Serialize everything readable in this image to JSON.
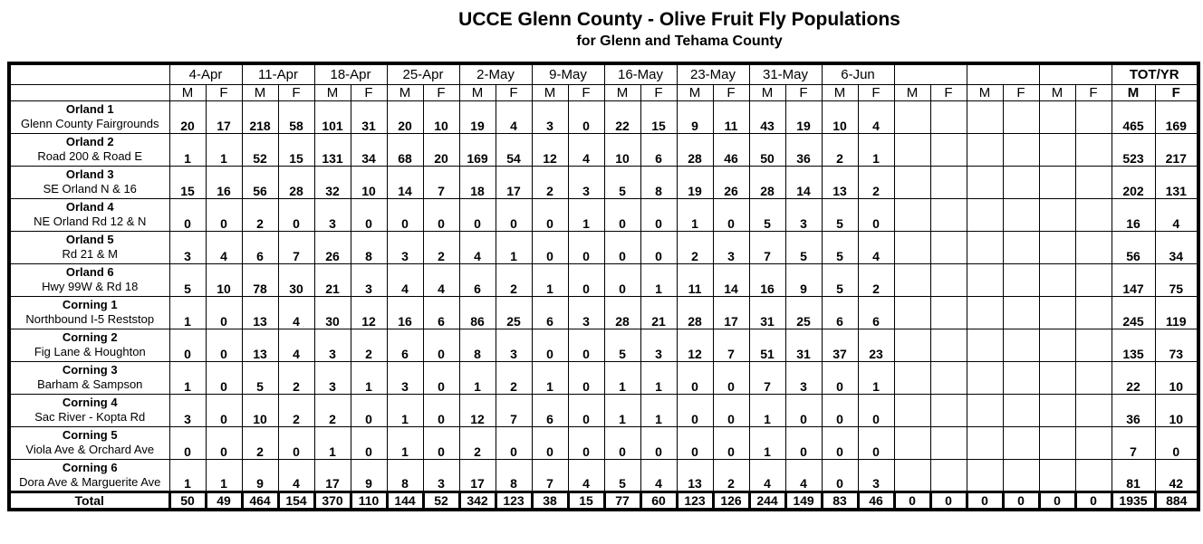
{
  "title": "UCCE Glenn County - Olive Fruit Fly Populations",
  "subtitle": "for Glenn and Tehama County",
  "table": {
    "male_label": "M",
    "female_label": "F",
    "total_col_label": "TOT/YR",
    "total_row_label": "Total",
    "date_groups": [
      "4-Apr",
      "11-Apr",
      "18-Apr",
      "25-Apr",
      "2-May",
      "9-May",
      "16-May",
      "23-May",
      "31-May",
      "6-Jun",
      "",
      "",
      ""
    ],
    "rows": [
      {
        "site": "Orland 1",
        "location": "Glenn County Fairgrounds",
        "values": [
          "20",
          "17",
          "218",
          "58",
          "101",
          "31",
          "20",
          "10",
          "19",
          "4",
          "3",
          "0",
          "22",
          "15",
          "9",
          "11",
          "43",
          "19",
          "10",
          "4",
          "",
          "",
          "",
          "",
          "",
          ""
        ],
        "tot": [
          "465",
          "169"
        ]
      },
      {
        "site": "Orland 2",
        "location": "Road 200 & Road E",
        "values": [
          "1",
          "1",
          "52",
          "15",
          "131",
          "34",
          "68",
          "20",
          "169",
          "54",
          "12",
          "4",
          "10",
          "6",
          "28",
          "46",
          "50",
          "36",
          "2",
          "1",
          "",
          "",
          "",
          "",
          "",
          ""
        ],
        "tot": [
          "523",
          "217"
        ]
      },
      {
        "site": "Orland 3",
        "location": "SE Orland N & 16",
        "values": [
          "15",
          "16",
          "56",
          "28",
          "32",
          "10",
          "14",
          "7",
          "18",
          "17",
          "2",
          "3",
          "5",
          "8",
          "19",
          "26",
          "28",
          "14",
          "13",
          "2",
          "",
          "",
          "",
          "",
          "",
          ""
        ],
        "tot": [
          "202",
          "131"
        ]
      },
      {
        "site": "Orland 4",
        "location": "NE Orland Rd 12 & N",
        "values": [
          "0",
          "0",
          "2",
          "0",
          "3",
          "0",
          "0",
          "0",
          "0",
          "0",
          "0",
          "1",
          "0",
          "0",
          "1",
          "0",
          "5",
          "3",
          "5",
          "0",
          "",
          "",
          "",
          "",
          "",
          ""
        ],
        "tot": [
          "16",
          "4"
        ]
      },
      {
        "site": "Orland 5",
        "location": "Rd 21 & M",
        "values": [
          "3",
          "4",
          "6",
          "7",
          "26",
          "8",
          "3",
          "2",
          "4",
          "1",
          "0",
          "0",
          "0",
          "0",
          "2",
          "3",
          "7",
          "5",
          "5",
          "4",
          "",
          "",
          "",
          "",
          "",
          ""
        ],
        "tot": [
          "56",
          "34"
        ]
      },
      {
        "site": "Orland 6",
        "location": "Hwy 99W & Rd 18",
        "values": [
          "5",
          "10",
          "78",
          "30",
          "21",
          "3",
          "4",
          "4",
          "6",
          "2",
          "1",
          "0",
          "0",
          "1",
          "11",
          "14",
          "16",
          "9",
          "5",
          "2",
          "",
          "",
          "",
          "",
          "",
          ""
        ],
        "tot": [
          "147",
          "75"
        ]
      },
      {
        "site": "Corning 1",
        "location": "Northbound I-5 Reststop",
        "values": [
          "1",
          "0",
          "13",
          "4",
          "30",
          "12",
          "16",
          "6",
          "86",
          "25",
          "6",
          "3",
          "28",
          "21",
          "28",
          "17",
          "31",
          "25",
          "6",
          "6",
          "",
          "",
          "",
          "",
          "",
          ""
        ],
        "tot": [
          "245",
          "119"
        ]
      },
      {
        "site": "Corning 2",
        "location": "Fig Lane & Houghton",
        "values": [
          "0",
          "0",
          "13",
          "4",
          "3",
          "2",
          "6",
          "0",
          "8",
          "3",
          "0",
          "0",
          "5",
          "3",
          "12",
          "7",
          "51",
          "31",
          "37",
          "23",
          "",
          "",
          "",
          "",
          "",
          ""
        ],
        "tot": [
          "135",
          "73"
        ]
      },
      {
        "site": "Corning 3",
        "location": "Barham & Sampson",
        "values": [
          "1",
          "0",
          "5",
          "2",
          "3",
          "1",
          "3",
          "0",
          "1",
          "2",
          "1",
          "0",
          "1",
          "1",
          "0",
          "0",
          "7",
          "3",
          "0",
          "1",
          "",
          "",
          "",
          "",
          "",
          ""
        ],
        "tot": [
          "22",
          "10"
        ]
      },
      {
        "site": "Corning 4",
        "location": "Sac River - Kopta Rd",
        "values": [
          "3",
          "0",
          "10",
          "2",
          "2",
          "0",
          "1",
          "0",
          "12",
          "7",
          "6",
          "0",
          "1",
          "1",
          "0",
          "0",
          "1",
          "0",
          "0",
          "0",
          "",
          "",
          "",
          "",
          "",
          ""
        ],
        "tot": [
          "36",
          "10"
        ]
      },
      {
        "site": "Corning 5",
        "location": "Viola Ave & Orchard Ave",
        "values": [
          "0",
          "0",
          "2",
          "0",
          "1",
          "0",
          "1",
          "0",
          "2",
          "0",
          "0",
          "0",
          "0",
          "0",
          "0",
          "0",
          "1",
          "0",
          "0",
          "0",
          "",
          "",
          "",
          "",
          "",
          ""
        ],
        "tot": [
          "7",
          "0"
        ]
      },
      {
        "site": "Corning 6",
        "location": "Dora Ave & Marguerite Ave",
        "values": [
          "1",
          "1",
          "9",
          "4",
          "17",
          "9",
          "8",
          "3",
          "17",
          "8",
          "7",
          "4",
          "5",
          "4",
          "13",
          "2",
          "4",
          "4",
          "0",
          "3",
          "",
          "",
          "",
          "",
          "",
          ""
        ],
        "tot": [
          "81",
          "42"
        ]
      }
    ],
    "total_row": {
      "values": [
        "50",
        "49",
        "464",
        "154",
        "370",
        "110",
        "144",
        "52",
        "342",
        "123",
        "38",
        "15",
        "77",
        "60",
        "123",
        "126",
        "244",
        "149",
        "83",
        "46",
        "0",
        "0",
        "0",
        "0",
        "0",
        "0"
      ],
      "tot": [
        "1935",
        "884"
      ]
    }
  }
}
